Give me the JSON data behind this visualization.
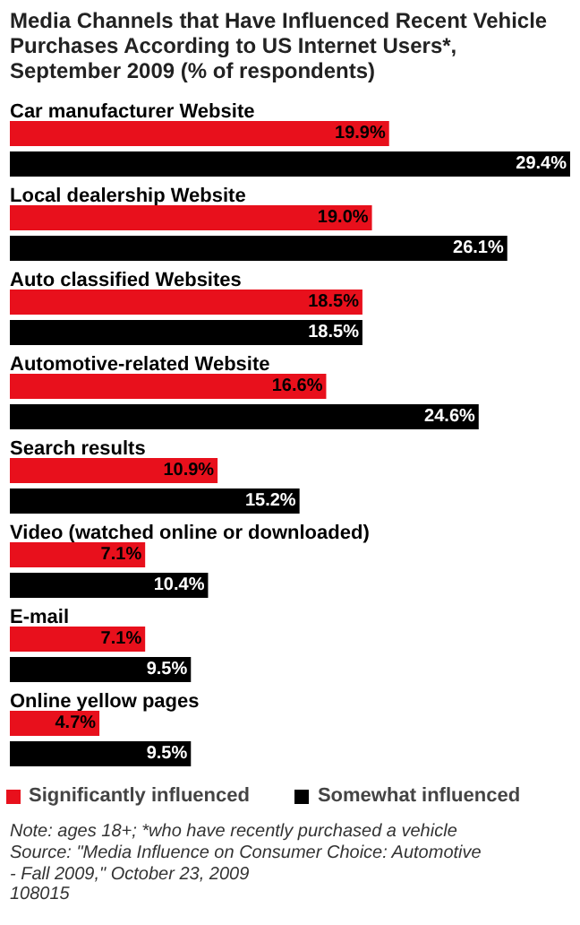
{
  "chart_data": {
    "type": "bar",
    "orientation": "horizontal",
    "title": "Media Channels that Have Influenced Recent Vehicle Purchases According to US Internet Users*, September 2009 (% of respondents)",
    "categories": [
      "Car manufacturer Website",
      "Local dealership Website",
      "Auto classified Websites",
      "Automotive-related Website",
      "Search results",
      "Video (watched online or downloaded)",
      "E-mail",
      "Online yellow pages"
    ],
    "series": [
      {
        "name": "Significantly influenced",
        "color": "#e8101c",
        "values": [
          19.9,
          19.0,
          18.5,
          16.6,
          10.9,
          7.1,
          7.1,
          4.7
        ],
        "value_labels": [
          "19.9%",
          "19.0%",
          "18.5%",
          "16.6%",
          "10.9%",
          "7.1%",
          "7.1%",
          "4.7%"
        ]
      },
      {
        "name": "Somewhat influenced",
        "color": "#000000",
        "values": [
          29.4,
          26.1,
          18.5,
          24.6,
          15.2,
          10.4,
          9.5,
          9.5
        ],
        "value_labels": [
          "29.4%",
          "26.1%",
          "18.5%",
          "24.6%",
          "15.2%",
          "10.4%",
          "9.5%",
          "9.5%"
        ]
      }
    ],
    "legend": "bottom",
    "annotations": [
      "Note: ages 18+; *who have recently purchased a vehicle",
      "Source: \"Media Influence on Consumer Choice: Automotive - Fall 2009,\" October 23, 2009",
      "108015"
    ]
  }
}
